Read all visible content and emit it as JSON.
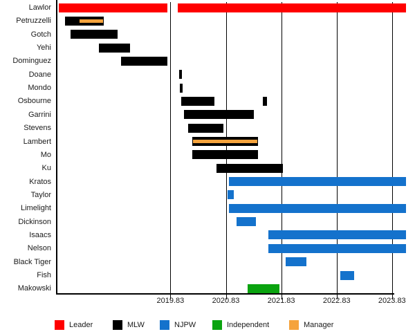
{
  "colors": {
    "leader": "#ff0000",
    "mlw": "#000000",
    "njpw": "#1472cc",
    "independent": "#0aa30f",
    "manager": "#f5a33c",
    "axis": "#000000",
    "text": "#1a1a1a"
  },
  "legend": {
    "items": [
      {
        "label": "Leader",
        "group": "leader"
      },
      {
        "label": "MLW",
        "group": "mlw"
      },
      {
        "label": "NJPW",
        "group": "njpw"
      },
      {
        "label": "Independent",
        "group": "independent"
      },
      {
        "label": "Manager",
        "group": "manager"
      }
    ]
  },
  "chart_data": {
    "type": "bar",
    "subtype": "timeline-gantt",
    "title": "",
    "xlabel": "",
    "ylabel": "",
    "grid": "vertical",
    "legend_position": "bottom",
    "x_axis": {
      "range": [
        2017.79,
        2024.12
      ],
      "ticks": [
        {
          "value": 2019.83,
          "label": "2019.83"
        },
        {
          "value": 2020.83,
          "label": "2020.83"
        },
        {
          "value": 2021.83,
          "label": "2021.83"
        },
        {
          "value": 2022.83,
          "label": "2022.83"
        },
        {
          "value": 2023.83,
          "label": "2023.83"
        }
      ]
    },
    "rows": [
      {
        "name": "Lawlor",
        "group": "leader",
        "segments": [
          [
            2017.81,
            2019.78
          ],
          [
            2019.96,
            2024.08
          ]
        ]
      },
      {
        "name": "Petruzzelli",
        "group": "mlw",
        "segments": [
          [
            2017.93,
            2018.63
          ]
        ],
        "overlays": [
          {
            "group": "manager",
            "range": [
              2018.19,
              2018.61
            ]
          }
        ]
      },
      {
        "name": "Gotch",
        "group": "mlw",
        "segments": [
          [
            2018.03,
            2018.88
          ]
        ]
      },
      {
        "name": "Yehi",
        "group": "mlw",
        "segments": [
          [
            2018.54,
            2019.1
          ]
        ]
      },
      {
        "name": "Dominguez",
        "group": "mlw",
        "segments": [
          [
            2018.94,
            2019.78
          ]
        ]
      },
      {
        "name": "Doane",
        "group": "mlw",
        "segments": [
          [
            2019.99,
            2020.04
          ]
        ]
      },
      {
        "name": "Mondo",
        "group": "mlw",
        "segments": [
          [
            2020.0,
            2020.05
          ]
        ]
      },
      {
        "name": "Osbourne",
        "group": "mlw",
        "segments": [
          [
            2020.02,
            2020.62
          ],
          [
            2021.5,
            2021.57
          ]
        ]
      },
      {
        "name": "Garrini",
        "group": "mlw",
        "segments": [
          [
            2020.07,
            2021.34
          ]
        ]
      },
      {
        "name": "Stevens",
        "group": "mlw",
        "segments": [
          [
            2020.15,
            2020.79
          ]
        ]
      },
      {
        "name": "Lambert",
        "group": "mlw",
        "segments": [
          [
            2020.22,
            2021.41
          ]
        ],
        "overlays": [
          {
            "group": "manager",
            "range": [
              2020.24,
              2021.4
            ]
          }
        ]
      },
      {
        "name": "Mo",
        "group": "mlw",
        "segments": [
          [
            2020.23,
            2021.41
          ]
        ]
      },
      {
        "name": "Ku",
        "group": "mlw",
        "segments": [
          [
            2020.66,
            2021.86
          ]
        ]
      },
      {
        "name": "Kratos",
        "group": "njpw",
        "segments": [
          [
            2020.88,
            2024.08
          ]
        ]
      },
      {
        "name": "Taylor",
        "group": "njpw",
        "segments": [
          [
            2020.86,
            2020.97
          ]
        ]
      },
      {
        "name": "Limelight",
        "group": "njpw",
        "segments": [
          [
            2020.88,
            2024.08
          ]
        ]
      },
      {
        "name": "Dickinson",
        "group": "njpw",
        "segments": [
          [
            2021.02,
            2021.37
          ]
        ]
      },
      {
        "name": "Isaacs",
        "group": "njpw",
        "segments": [
          [
            2021.6,
            2024.08
          ]
        ]
      },
      {
        "name": "Nelson",
        "group": "njpw",
        "segments": [
          [
            2021.6,
            2024.08
          ]
        ]
      },
      {
        "name": "Black Tiger",
        "group": "njpw",
        "segments": [
          [
            2021.91,
            2022.28
          ]
        ]
      },
      {
        "name": "Fish",
        "group": "njpw",
        "segments": [
          [
            2022.9,
            2023.15
          ]
        ]
      },
      {
        "name": "Makowski",
        "group": "independent",
        "segments": [
          [
            2021.22,
            2021.8
          ]
        ]
      }
    ]
  }
}
